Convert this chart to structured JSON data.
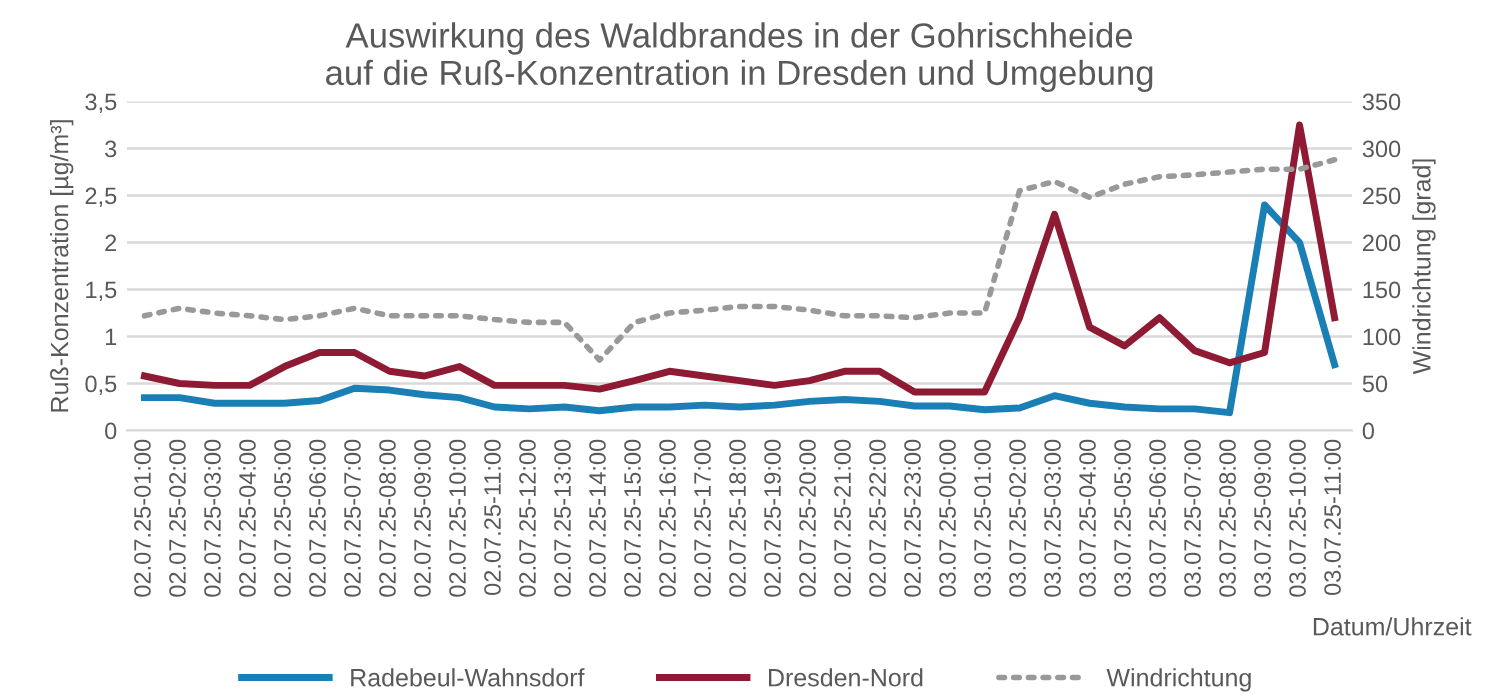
{
  "chart_data": {
    "type": "line",
    "title": "Auswirkung des Waldbrandes in der Gohrischheide\nauf die Ruß-Konzentration in Dresden und Umgebung",
    "xlabel": "Datum/Uhrzeit",
    "ylabel": "Ruß-Konzentration [µg/m³]",
    "y2label": "Windrichtung [grad]",
    "categories": [
      "02.07.25-01:00",
      "02.07.25-02:00",
      "02.07.25-03:00",
      "02.07.25-04:00",
      "02.07.25-05:00",
      "02.07.25-06:00",
      "02.07.25-07:00",
      "02.07.25-08:00",
      "02.07.25-09:00",
      "02.07.25-10:00",
      "02.07.25-11:00",
      "02.07.25-12:00",
      "02.07.25-13:00",
      "02.07.25-14:00",
      "02.07.25-15:00",
      "02.07.25-16:00",
      "02.07.25-17:00",
      "02.07.25-18:00",
      "02.07.25-19:00",
      "02.07.25-20:00",
      "02.07.25-21:00",
      "02.07.25-22:00",
      "02.07.25-23:00",
      "03.07.25-00:00",
      "03.07.25-01:00",
      "03.07.25-02:00",
      "03.07.25-03:00",
      "03.07.25-04:00",
      "03.07.25-05:00",
      "03.07.25-06:00",
      "03.07.25-07:00",
      "03.07.25-08:00",
      "03.07.25-09:00",
      "03.07.25-10:00",
      "03.07.25-11:00"
    ],
    "series": [
      {
        "name": "Radebeul-Wahnsdorf",
        "color": "#1a7fb5",
        "line_style": "solid",
        "values": [
          0.35,
          0.35,
          0.29,
          0.29,
          0.29,
          0.32,
          0.45,
          0.43,
          0.38,
          0.35,
          0.25,
          0.23,
          0.25,
          0.21,
          0.25,
          0.25,
          0.27,
          0.25,
          0.27,
          0.31,
          0.33,
          0.31,
          0.26,
          0.26,
          0.22,
          0.24,
          0.37,
          0.29,
          0.25,
          0.23,
          0.23,
          0.19,
          2.4,
          2.0,
          0.7
        ]
      },
      {
        "name": "Dresden-Nord",
        "color": "#8e1b33",
        "line_style": "solid",
        "values": [
          0.58,
          0.5,
          0.48,
          0.48,
          0.68,
          0.83,
          0.83,
          0.63,
          0.58,
          0.68,
          0.48,
          0.48,
          0.48,
          0.44,
          0.53,
          0.63,
          0.58,
          0.53,
          0.48,
          0.53,
          0.63,
          0.63,
          0.41,
          0.41,
          0.41,
          1.2,
          2.3,
          1.1,
          0.9,
          1.2,
          0.85,
          0.72,
          0.83,
          3.25,
          1.2
        ]
      },
      {
        "name": "Windrichtung",
        "color": "#999999",
        "line_style": "dotted",
        "axis": "y2",
        "values": [
          122,
          130,
          125,
          122,
          118,
          122,
          130,
          122,
          122,
          122,
          118,
          115,
          115,
          75,
          115,
          125,
          128,
          132,
          132,
          128,
          122,
          122,
          120,
          125,
          125,
          255,
          265,
          248,
          262,
          270,
          272,
          275,
          278,
          278,
          288
        ]
      }
    ],
    "ylim": [
      0,
      3.5
    ],
    "yticks": [
      0,
      {
        "value": 0.5,
        "label": "0,5"
      },
      1,
      {
        "value": 1.5,
        "label": "1,5"
      },
      2,
      {
        "value": 2.5,
        "label": "2,5"
      },
      3,
      {
        "value": 3.5,
        "label": "3,5"
      }
    ],
    "y2lim": [
      0,
      350
    ],
    "y2ticks": [
      0,
      50,
      100,
      150,
      200,
      250,
      300,
      350
    ],
    "grid": "y",
    "legend": "bottom",
    "marker": "none"
  }
}
